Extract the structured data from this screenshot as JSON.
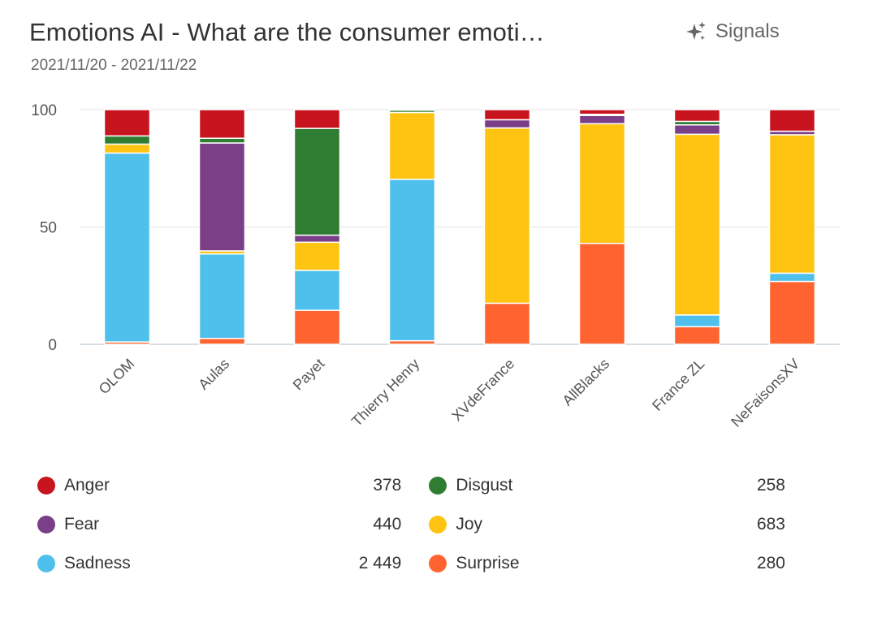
{
  "header": {
    "title": "Emotions AI - What are the consumer emoti…",
    "date_range": "2021/11/20 - 2021/11/22",
    "signals_label": "Signals",
    "signals_icon": "sparkles-icon"
  },
  "chart_data": {
    "type": "bar",
    "stacked": true,
    "ylim": [
      0,
      100
    ],
    "yticks": [
      "0",
      "50",
      "100"
    ],
    "grid": true,
    "categories": [
      "OLOM",
      "Aulas",
      "Payet",
      "Thierry Henry",
      "XVdeFrance",
      "AllBlacks",
      "France ZL",
      "NeFaisonsXV"
    ],
    "series": [
      {
        "name": "Surprise",
        "color": "#ff6330",
        "values": [
          1,
          2.5,
          14.5,
          1.5,
          17.5,
          43,
          7.5,
          26.8
        ]
      },
      {
        "name": "Sadness",
        "color": "#4fc0eb",
        "values": [
          80.5,
          36,
          17,
          68.8,
          0,
          0,
          5,
          3.5
        ]
      },
      {
        "name": "Joy",
        "color": "#ffc312",
        "values": [
          3.8,
          1.3,
          12,
          28.5,
          74.7,
          51,
          77,
          59
        ]
      },
      {
        "name": "Fear",
        "color": "#7a3f87",
        "values": [
          0,
          46,
          3,
          0,
          3.5,
          3.5,
          4,
          1.5
        ]
      },
      {
        "name": "Disgust",
        "color": "#2e7d32",
        "values": [
          3.5,
          2,
          45.5,
          1,
          0,
          0.5,
          1.5,
          0
        ]
      },
      {
        "name": "Anger",
        "color": "#c8141e",
        "values": [
          11.2,
          12.2,
          8,
          0.2,
          4.3,
          2,
          5,
          9.2
        ]
      }
    ]
  },
  "legend": {
    "rows": [
      [
        {
          "name": "Anger",
          "value": "378",
          "color": "#c8141e"
        },
        {
          "name": "Disgust",
          "value": "258",
          "color": "#2e7d32"
        }
      ],
      [
        {
          "name": "Fear",
          "value": "440",
          "color": "#7a3f87"
        },
        {
          "name": "Joy",
          "value": "683",
          "color": "#ffc312"
        }
      ],
      [
        {
          "name": "Sadness",
          "value": "2 449",
          "color": "#4fc0eb"
        },
        {
          "name": "Surprise",
          "value": "280",
          "color": "#ff6330"
        }
      ]
    ]
  }
}
